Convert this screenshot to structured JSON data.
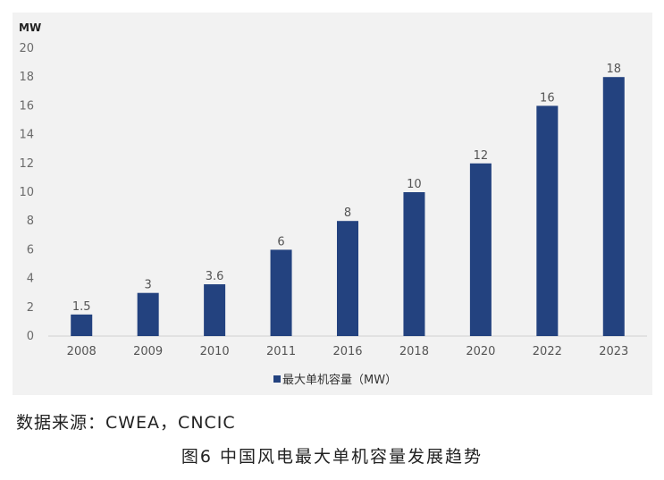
{
  "chart_data": {
    "type": "bar",
    "unit_label": "MW",
    "categories": [
      "2008",
      "2009",
      "2010",
      "2011",
      "2016",
      "2018",
      "2020",
      "2022",
      "2023"
    ],
    "series": [
      {
        "name": "最大单机容量（MW）",
        "values": [
          1.5,
          3,
          3.6,
          6,
          8,
          10,
          12,
          16,
          18
        ],
        "labels": [
          "1.5",
          "3",
          "3.6",
          "6",
          "8",
          "10",
          "12",
          "16",
          "18"
        ]
      }
    ],
    "ylim": [
      0,
      20
    ],
    "yticks": [
      "0",
      "2",
      "4",
      "6",
      "8",
      "10",
      "12",
      "14",
      "16",
      "18",
      "20"
    ],
    "bar_color": "#23427f",
    "background_color": "#f2f2f2",
    "grid": false,
    "legend_position": "bottom-center"
  },
  "source": "数据来源：CWEA，CNCIC",
  "caption": "图6  中国风电最大单机容量发展趋势"
}
